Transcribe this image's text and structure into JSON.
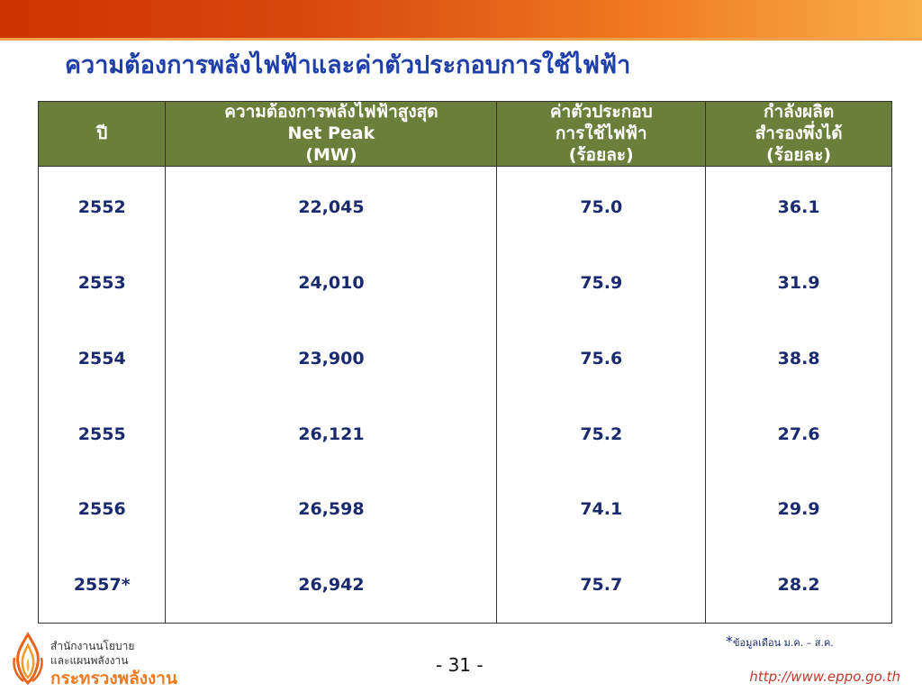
{
  "slide": {
    "title": "ความต้องการพลังไฟฟ้าและค่าตัวประกอบการใช้ไฟฟ้า",
    "page_number": "- 31 -",
    "note_star": "*",
    "note_text": "ข้อมูลเดือน ม.ค. – ส.ค.",
    "url": "http://www.eppo.go.th"
  },
  "footer": {
    "org_line1": "สำนักงานนโยบาย",
    "org_line2": "และแผนพลังงาน",
    "ministry": "กระทรวงพลังงาน"
  },
  "table": {
    "headers": [
      {
        "lines": [
          "ปี"
        ]
      },
      {
        "lines": [
          "ความต้องการพลังไฟฟ้าสูงสุด",
          "Net Peak",
          "(MW)"
        ]
      },
      {
        "lines": [
          "ค่าตัวประกอบ",
          "การใช้ไฟฟ้า",
          "(ร้อยละ)"
        ]
      },
      {
        "lines": [
          "กำลังผลิต",
          "สำรองพึ่งได้",
          "(ร้อยละ)"
        ]
      }
    ],
    "rows": [
      [
        "2552",
        "22,045",
        "75.0",
        "36.1"
      ],
      [
        "2553",
        "24,010",
        "75.9",
        "31.9"
      ],
      [
        "2554",
        "23,900",
        "75.6",
        "38.8"
      ],
      [
        "2555",
        "26,121",
        "75.2",
        "27.6"
      ],
      [
        "2556",
        "26,598",
        "74.1",
        "29.9"
      ],
      [
        "2557*",
        "26,942",
        "75.7",
        "28.2"
      ]
    ]
  },
  "colors": {
    "header_bg": "#6a7f3a",
    "title": "#1f3fa8",
    "cell_text": "#1a2a6e",
    "accent": "#f07a22"
  }
}
